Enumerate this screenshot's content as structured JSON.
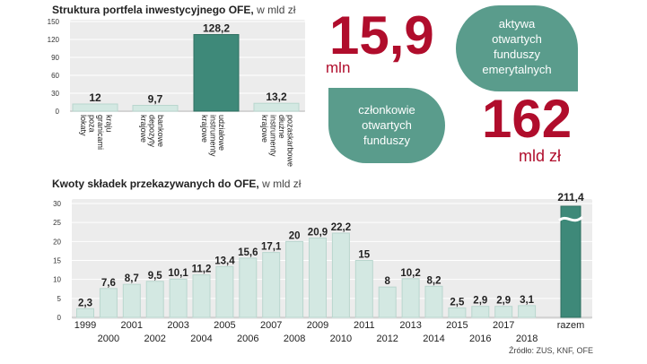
{
  "chart_data": [
    {
      "type": "bar",
      "title": "Struktura portfela inwestycyjnego OFE,",
      "unit": "w mld zł",
      "ylim": [
        0,
        150
      ],
      "yticks": [
        "150",
        "120",
        "90",
        "60",
        "30",
        "0"
      ],
      "categories": [
        [
          "lokaty",
          "poza",
          "granicami",
          "kraju"
        ],
        [
          "krajowe",
          "depozyty",
          "bankowe"
        ],
        [
          "krajowe",
          "instrumenty",
          "udziałowe"
        ],
        [
          "krajowe",
          "instrumenty",
          "dłużne",
          "pozaskarbowe"
        ]
      ],
      "values": [
        12,
        9.7,
        128.2,
        13.2
      ],
      "labels": [
        "12",
        "9,7",
        "128,2",
        "13,2"
      ],
      "highlight_index": 2
    },
    {
      "type": "bar",
      "title": "Kwoty składek przekazywanych do OFE,",
      "unit": "w mld zł",
      "ylim": [
        0,
        30
      ],
      "yticks": [
        "30",
        "25",
        "20",
        "15",
        "10",
        "5",
        "0"
      ],
      "categories": [
        "1999",
        "2000",
        "2001",
        "2002",
        "2003",
        "2004",
        "2005",
        "2006",
        "2007",
        "2008",
        "2009",
        "2010",
        "2011",
        "2012",
        "2013",
        "2014",
        "2015",
        "2016",
        "2017",
        "2018"
      ],
      "values": [
        2.3,
        7.6,
        8.7,
        9.5,
        10.1,
        11.2,
        13.4,
        15.6,
        17.1,
        20,
        20.9,
        22.2,
        15,
        8,
        10.2,
        8.2,
        2.5,
        2.9,
        2.9,
        3.1
      ],
      "labels": [
        "2,3",
        "7,6",
        "8,7",
        "9,5",
        "10,1",
        "11,2",
        "13,4",
        "15,6",
        "17,1",
        "20",
        "20,9",
        "22,2",
        "15",
        "8",
        "10,2",
        "8,2",
        "2,5",
        "2,9",
        "2,9",
        "3,1"
      ],
      "total_label": "razem",
      "total_value": 211.4,
      "total_value_label": "211,4"
    }
  ],
  "kpi": {
    "members_value": "15,9",
    "members_unit": "mln",
    "members_desc": [
      "członkowie",
      "otwartych",
      "funduszy"
    ],
    "assets_value": "162",
    "assets_unit": "mld zł",
    "assets_desc": [
      "aktywa",
      "otwartych",
      "funduszy",
      "emerytalnych"
    ]
  },
  "source": "Źródło: ZUS, KNF, OFE",
  "colors": {
    "bar": "#d3e8e2",
    "bar_stroke": "#b9d6ce",
    "highlight": "#3e8979",
    "highlight_stroke": "#2f6f61",
    "panel": "#ececec",
    "accent_red": "#b00d2c",
    "blob": "#5a9c8c"
  }
}
